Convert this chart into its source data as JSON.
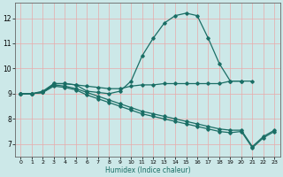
{
  "xlabel": "Humidex (Indice chaleur)",
  "xlim": [
    -0.5,
    23.5
  ],
  "ylim": [
    6.5,
    12.6
  ],
  "xticks": [
    0,
    1,
    2,
    3,
    4,
    5,
    6,
    7,
    8,
    9,
    10,
    11,
    12,
    13,
    14,
    15,
    16,
    17,
    18,
    19,
    20,
    21,
    22,
    23
  ],
  "yticks": [
    7,
    8,
    9,
    10,
    11,
    12
  ],
  "bg_color": "#cce8e8",
  "grid_color": "#e8aaaa",
  "line_color": "#1a6e65",
  "line_width": 0.9,
  "marker": "D",
  "marker_size": 1.8,
  "lines": [
    {
      "x": [
        0,
        1,
        2,
        3,
        4,
        5,
        6,
        7,
        8,
        9,
        10,
        11,
        12,
        13,
        14,
        15,
        16,
        17,
        18,
        19,
        20
      ],
      "y": [
        9.0,
        9.0,
        9.1,
        9.4,
        9.4,
        9.35,
        9.1,
        9.05,
        9.0,
        9.1,
        9.5,
        10.5,
        11.2,
        11.8,
        12.1,
        12.2,
        12.1,
        11.2,
        10.2,
        9.5,
        9.5
      ]
    },
    {
      "x": [
        0,
        1,
        2,
        3,
        4,
        5,
        6,
        7,
        8,
        9,
        10,
        11,
        12,
        13,
        14,
        15,
        16,
        17,
        18,
        19,
        20,
        21,
        22,
        23
      ],
      "y": [
        9.0,
        9.0,
        9.05,
        9.4,
        9.4,
        9.35,
        9.3,
        9.25,
        9.2,
        9.2,
        9.3,
        9.35,
        9.35,
        9.4,
        9.4,
        9.4,
        9.4,
        9.4,
        9.4,
        9.5,
        9.5,
        9.5,
        null,
        null
      ]
    },
    {
      "x": [
        0,
        1,
        2,
        3,
        4,
        5,
        6,
        7,
        8,
        9,
        10,
        11,
        12,
        13,
        14,
        15,
        16,
        17,
        18,
        19,
        20,
        21,
        22,
        23
      ],
      "y": [
        9.0,
        9.0,
        9.05,
        9.35,
        9.3,
        9.2,
        9.05,
        8.9,
        8.75,
        8.6,
        8.45,
        8.3,
        8.2,
        8.1,
        8.0,
        7.9,
        7.8,
        7.7,
        7.6,
        7.55,
        7.55,
        6.9,
        7.3,
        7.55
      ]
    },
    {
      "x": [
        0,
        1,
        2,
        3,
        4,
        5,
        6,
        7,
        8,
        9,
        10,
        11,
        12,
        13,
        14,
        15,
        16,
        17,
        18,
        19,
        20,
        21,
        22,
        23
      ],
      "y": [
        9.0,
        9.0,
        9.05,
        9.3,
        9.25,
        9.15,
        8.95,
        8.8,
        8.65,
        8.5,
        8.35,
        8.2,
        8.1,
        8.0,
        7.9,
        7.8,
        7.7,
        7.6,
        7.5,
        7.45,
        7.5,
        6.85,
        7.25,
        7.5
      ]
    }
  ]
}
